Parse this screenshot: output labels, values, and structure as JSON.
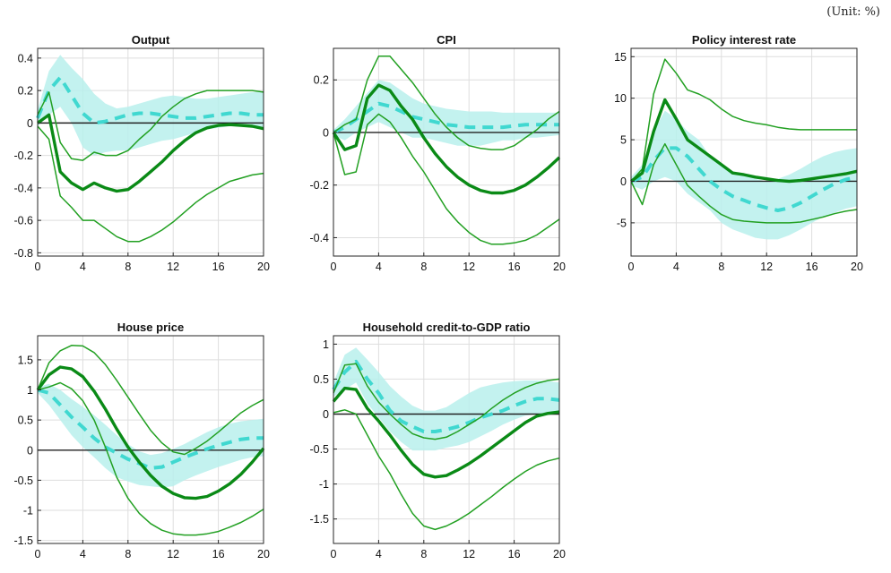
{
  "unit_note": "(Unit: %)",
  "colors": {
    "band": "#b8f0ec",
    "dash": "#40d8d0",
    "median": "#0a8a16",
    "ci": "#22a022",
    "zero": "#222222",
    "grid": "#dedede"
  },
  "chart_data": [
    {
      "type": "line",
      "title": "Output",
      "xlim": [
        0,
        20
      ],
      "ylim": [
        -0.82,
        0.46
      ],
      "xticks": [
        0,
        4,
        8,
        12,
        16,
        20
      ],
      "yticks": [
        -0.8,
        -0.6,
        -0.4,
        -0.2,
        0,
        0.2,
        0.4
      ],
      "ytick_labels": [
        "-0.8",
        "-0.6",
        "-0.4",
        "-0.2",
        "0",
        "0.2",
        "0.4"
      ],
      "x": [
        0,
        1,
        2,
        3,
        4,
        5,
        6,
        7,
        8,
        9,
        10,
        11,
        12,
        13,
        14,
        15,
        16,
        17,
        18,
        19,
        20
      ],
      "median": [
        0,
        0.05,
        -0.3,
        -0.37,
        -0.41,
        -0.37,
        -0.4,
        -0.42,
        -0.41,
        -0.36,
        -0.3,
        -0.24,
        -0.17,
        -0.11,
        -0.06,
        -0.03,
        -0.015,
        -0.01,
        -0.015,
        -0.02,
        -0.035
      ],
      "upper": [
        0.05,
        0.19,
        -0.12,
        -0.22,
        -0.23,
        -0.18,
        -0.2,
        -0.2,
        -0.17,
        -0.1,
        -0.04,
        0.04,
        0.1,
        0.15,
        0.18,
        0.2,
        0.2,
        0.2,
        0.2,
        0.2,
        0.19
      ],
      "lower": [
        -0.02,
        -0.1,
        -0.45,
        -0.52,
        -0.6,
        -0.6,
        -0.65,
        -0.7,
        -0.73,
        -0.73,
        -0.7,
        -0.66,
        -0.61,
        -0.55,
        -0.49,
        -0.44,
        -0.4,
        -0.36,
        -0.34,
        -0.32,
        -0.31
      ],
      "dashed": [
        0.03,
        0.2,
        0.28,
        0.17,
        0.06,
        0.0,
        0.01,
        0.03,
        0.05,
        0.06,
        0.06,
        0.05,
        0.04,
        0.03,
        0.03,
        0.04,
        0.05,
        0.06,
        0.06,
        0.05,
        0.05
      ],
      "band_upper": [
        0.08,
        0.32,
        0.42,
        0.34,
        0.27,
        0.18,
        0.12,
        0.09,
        0.1,
        0.12,
        0.14,
        0.16,
        0.17,
        0.16,
        0.15,
        0.15,
        0.16,
        0.17,
        0.18,
        0.19,
        0.19
      ],
      "band_lower": [
        -0.02,
        0.05,
        0.1,
        0.0,
        -0.15,
        -0.2,
        -0.18,
        -0.17,
        -0.17,
        -0.15,
        -0.13,
        -0.11,
        -0.1,
        -0.08,
        -0.06,
        -0.04,
        -0.03,
        -0.02,
        -0.02,
        -0.03,
        -0.04
      ]
    },
    {
      "type": "line",
      "title": "CPI",
      "xlim": [
        0,
        20
      ],
      "ylim": [
        -0.47,
        0.32
      ],
      "xticks": [
        0,
        4,
        8,
        12,
        16,
        20
      ],
      "yticks": [
        -0.4,
        -0.2,
        0,
        0.2
      ],
      "ytick_labels": [
        "-0.4",
        "-0.2",
        "0",
        "0.2"
      ],
      "x": [
        0,
        1,
        2,
        3,
        4,
        5,
        6,
        7,
        8,
        9,
        10,
        11,
        12,
        13,
        14,
        15,
        16,
        17,
        18,
        19,
        20
      ],
      "median": [
        0,
        -0.065,
        -0.05,
        0.13,
        0.18,
        0.16,
        0.1,
        0.05,
        -0.02,
        -0.08,
        -0.13,
        -0.17,
        -0.2,
        -0.22,
        -0.23,
        -0.23,
        -0.22,
        -0.2,
        -0.17,
        -0.135,
        -0.095
      ],
      "upper": [
        0,
        0.03,
        0.05,
        0.2,
        0.29,
        0.29,
        0.24,
        0.19,
        0.13,
        0.07,
        0.02,
        -0.02,
        -0.05,
        -0.06,
        -0.065,
        -0.065,
        -0.05,
        -0.02,
        0.01,
        0.05,
        0.08
      ],
      "lower": [
        0,
        -0.16,
        -0.15,
        0.03,
        0.07,
        0.04,
        -0.02,
        -0.09,
        -0.15,
        -0.22,
        -0.29,
        -0.34,
        -0.38,
        -0.41,
        -0.425,
        -0.425,
        -0.42,
        -0.41,
        -0.39,
        -0.36,
        -0.33
      ],
      "dashed": [
        0,
        0.02,
        0.05,
        0.08,
        0.11,
        0.1,
        0.08,
        0.06,
        0.05,
        0.04,
        0.03,
        0.025,
        0.02,
        0.02,
        0.02,
        0.02,
        0.025,
        0.03,
        0.03,
        0.03,
        0.03
      ],
      "band_upper": [
        0.01,
        0.05,
        0.1,
        0.15,
        0.2,
        0.19,
        0.16,
        0.13,
        0.11,
        0.1,
        0.09,
        0.085,
        0.08,
        0.08,
        0.08,
        0.075,
        0.075,
        0.075,
        0.075,
        0.075,
        0.075
      ],
      "band_lower": [
        -0.01,
        -0.03,
        0.0,
        0.02,
        0.04,
        0.02,
        0.0,
        -0.02,
        -0.02,
        -0.03,
        -0.04,
        -0.05,
        -0.05,
        -0.05,
        -0.04,
        -0.03,
        -0.03,
        -0.02,
        -0.02,
        -0.015,
        -0.01
      ]
    },
    {
      "type": "line",
      "title": "Policy interest rate",
      "xlim": [
        0,
        20
      ],
      "ylim": [
        -9,
        16
      ],
      "xticks": [
        0,
        4,
        8,
        12,
        16,
        20
      ],
      "yticks": [
        -5,
        0,
        5,
        10,
        15
      ],
      "ytick_labels": [
        "-5",
        "0",
        "5",
        "10",
        "15"
      ],
      "x": [
        0,
        1,
        2,
        3,
        4,
        5,
        6,
        7,
        8,
        9,
        10,
        11,
        12,
        13,
        14,
        15,
        16,
        17,
        18,
        19,
        20
      ],
      "median": [
        0,
        1,
        6,
        9.8,
        7.5,
        5,
        4,
        3,
        2,
        1,
        0.8,
        0.5,
        0.3,
        0.1,
        0,
        0.1,
        0.3,
        0.5,
        0.7,
        0.9,
        1.2
      ],
      "upper": [
        0,
        1.5,
        10.5,
        14.7,
        13,
        11,
        10.5,
        9.8,
        8.7,
        7.8,
        7.3,
        7,
        6.8,
        6.5,
        6.3,
        6.2,
        6.2,
        6.2,
        6.2,
        6.2,
        6.2
      ],
      "lower": [
        0,
        -2.8,
        2,
        4.5,
        2,
        -0.5,
        -1.8,
        -3,
        -4,
        -4.6,
        -4.8,
        -4.9,
        -5,
        -5,
        -5,
        -4.9,
        -4.6,
        -4.3,
        -3.9,
        -3.6,
        -3.4
      ],
      "dashed": [
        0,
        0.5,
        2.5,
        4,
        4,
        3,
        1.5,
        0,
        -1,
        -1.8,
        -2.3,
        -2.8,
        -3.2,
        -3.5,
        -3.2,
        -2.6,
        -1.8,
        -1,
        -0.3,
        0.2,
        0.5
      ],
      "band_upper": [
        0.5,
        2,
        6,
        8.5,
        7.5,
        6,
        5,
        3,
        2,
        1.2,
        0.7,
        0.3,
        0,
        0.3,
        0.8,
        1.5,
        2.3,
        3,
        3.5,
        3.8,
        4
      ],
      "band_lower": [
        -0.5,
        -1,
        0,
        0.5,
        0,
        -1.5,
        -2.5,
        -3.5,
        -5,
        -5.8,
        -6.3,
        -6.8,
        -7,
        -7,
        -6.5,
        -5.8,
        -5,
        -4.3,
        -3.8,
        -3.3,
        -3
      ]
    },
    {
      "type": "line",
      "title": "House price",
      "xlim": [
        0,
        20
      ],
      "ylim": [
        -1.55,
        1.9
      ],
      "xticks": [
        0,
        4,
        8,
        12,
        16,
        20
      ],
      "yticks": [
        -1.5,
        -1,
        -0.5,
        0,
        0.5,
        1,
        1.5
      ],
      "ytick_labels": [
        "-1.5",
        "-1",
        "-0.5",
        "0",
        "0.5",
        "1",
        "1.5"
      ],
      "x": [
        0,
        1,
        2,
        3,
        4,
        5,
        6,
        7,
        8,
        9,
        10,
        11,
        12,
        13,
        14,
        15,
        16,
        17,
        18,
        19,
        20
      ],
      "median": [
        1,
        1.25,
        1.38,
        1.35,
        1.22,
        0.98,
        0.68,
        0.35,
        0.05,
        -0.2,
        -0.42,
        -0.6,
        -0.72,
        -0.79,
        -0.8,
        -0.77,
        -0.68,
        -0.56,
        -0.4,
        -0.2,
        0.03
      ],
      "upper": [
        1,
        1.45,
        1.65,
        1.74,
        1.73,
        1.62,
        1.42,
        1.16,
        0.88,
        0.6,
        0.33,
        0.12,
        -0.03,
        -0.07,
        0.03,
        0.15,
        0.3,
        0.46,
        0.62,
        0.74,
        0.84
      ],
      "lower": [
        1,
        1.05,
        1.12,
        1.02,
        0.82,
        0.5,
        0.05,
        -0.45,
        -0.8,
        -1.05,
        -1.22,
        -1.33,
        -1.39,
        -1.41,
        -1.41,
        -1.39,
        -1.35,
        -1.28,
        -1.2,
        -1.1,
        -0.98
      ],
      "dashed": [
        1,
        0.95,
        0.75,
        0.55,
        0.38,
        0.2,
        0.05,
        -0.05,
        -0.15,
        -0.22,
        -0.3,
        -0.28,
        -0.2,
        -0.12,
        -0.05,
        0.02,
        0.08,
        0.13,
        0.18,
        0.2,
        0.2
      ],
      "band_upper": [
        1.05,
        1.1,
        1.0,
        0.85,
        0.72,
        0.58,
        0.42,
        0.25,
        0.1,
        -0.02,
        -0.08,
        -0.05,
        0.02,
        0.1,
        0.2,
        0.3,
        0.38,
        0.44,
        0.48,
        0.5,
        0.52
      ],
      "band_lower": [
        0.95,
        0.75,
        0.5,
        0.25,
        0.05,
        -0.12,
        -0.3,
        -0.45,
        -0.52,
        -0.58,
        -0.6,
        -0.62,
        -0.6,
        -0.5,
        -0.42,
        -0.35,
        -0.28,
        -0.22,
        -0.16,
        -0.12,
        -0.1
      ]
    },
    {
      "type": "line",
      "title": "Household credit-to-GDP ratio",
      "xlim": [
        0,
        20
      ],
      "ylim": [
        -1.85,
        1.12
      ],
      "xticks": [
        0,
        4,
        8,
        12,
        16,
        20
      ],
      "yticks": [
        -1.5,
        -1,
        -0.5,
        0,
        0.5,
        1
      ],
      "ytick_labels": [
        "-1.5",
        "-1",
        "-0.5",
        "0",
        "0.5",
        "1"
      ],
      "x": [
        0,
        1,
        2,
        3,
        4,
        5,
        6,
        7,
        8,
        9,
        10,
        11,
        12,
        13,
        14,
        15,
        16,
        17,
        18,
        19,
        20
      ],
      "median": [
        0.18,
        0.37,
        0.35,
        0.08,
        -0.1,
        -0.3,
        -0.52,
        -0.72,
        -0.86,
        -0.9,
        -0.88,
        -0.8,
        -0.71,
        -0.6,
        -0.48,
        -0.36,
        -0.24,
        -0.12,
        -0.03,
        0.01,
        0.03
      ],
      "upper": [
        0.3,
        0.7,
        0.72,
        0.4,
        0.17,
        0.0,
        -0.15,
        -0.28,
        -0.34,
        -0.36,
        -0.33,
        -0.25,
        -0.15,
        -0.05,
        0.08,
        0.2,
        0.3,
        0.38,
        0.44,
        0.48,
        0.5
      ],
      "lower": [
        0.02,
        0.06,
        0.0,
        -0.3,
        -0.6,
        -0.85,
        -1.15,
        -1.42,
        -1.6,
        -1.65,
        -1.6,
        -1.52,
        -1.42,
        -1.3,
        -1.18,
        -1.05,
        -0.93,
        -0.82,
        -0.73,
        -0.67,
        -0.63
      ],
      "dashed": [
        0.35,
        0.6,
        0.75,
        0.5,
        0.3,
        0.05,
        -0.1,
        -0.18,
        -0.25,
        -0.25,
        -0.22,
        -0.18,
        -0.12,
        -0.05,
        0.0,
        0.05,
        0.12,
        0.18,
        0.22,
        0.22,
        0.2
      ],
      "band_upper": [
        0.45,
        0.85,
        0.95,
        0.78,
        0.6,
        0.4,
        0.25,
        0.12,
        0.05,
        0.05,
        0.1,
        0.2,
        0.3,
        0.38,
        0.42,
        0.45,
        0.47,
        0.48,
        0.48,
        0.47,
        0.45
      ],
      "band_lower": [
        0.25,
        0.35,
        0.45,
        0.15,
        -0.05,
        -0.25,
        -0.4,
        -0.52,
        -0.52,
        -0.52,
        -0.48,
        -0.45,
        -0.4,
        -0.32,
        -0.24,
        -0.15,
        -0.08,
        -0.02,
        0.0,
        0.0,
        0.0
      ]
    }
  ]
}
